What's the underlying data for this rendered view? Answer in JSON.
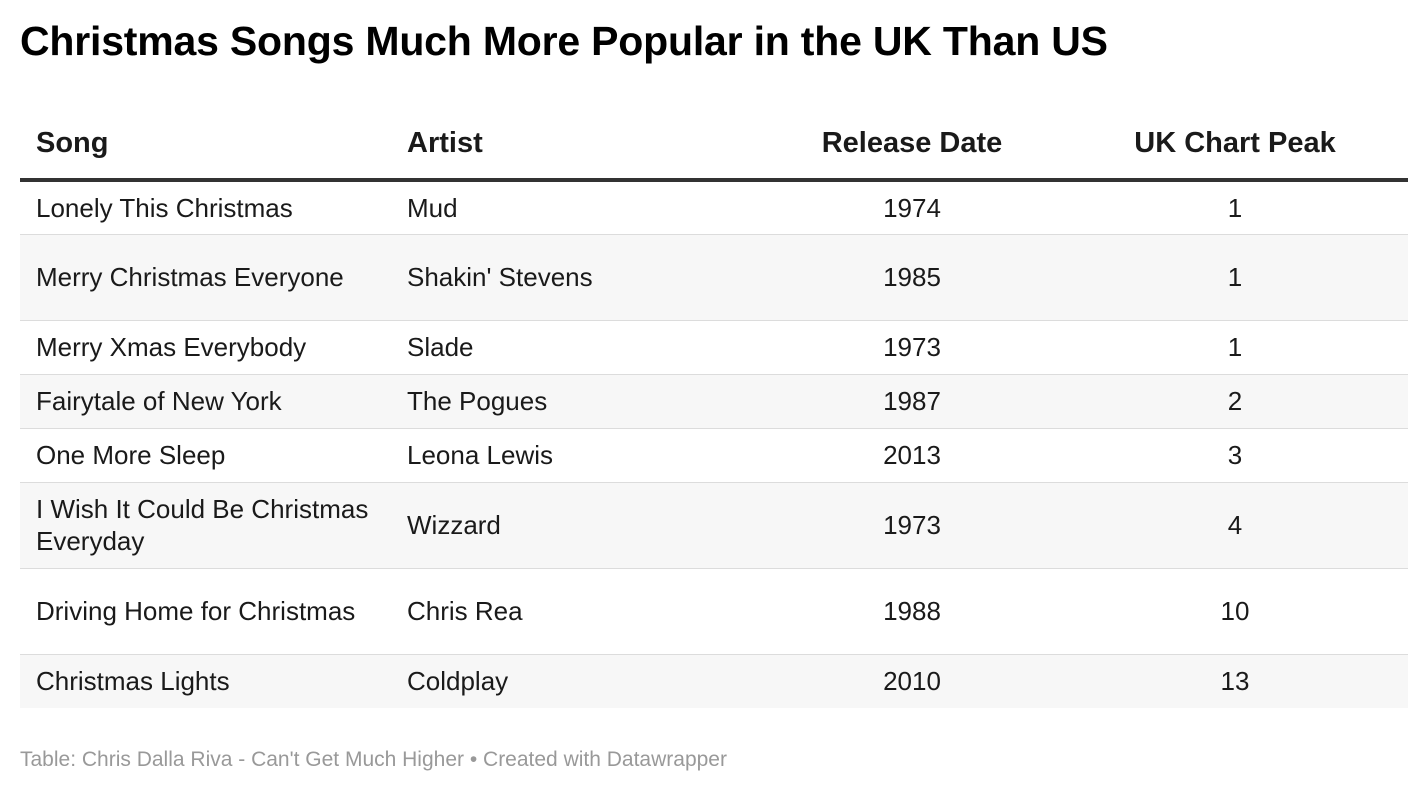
{
  "title": "Christmas Songs Much More Popular in the UK Than US",
  "footer": "Table: Chris Dalla Riva - Can't Get Much Higher • Created with Datawrapper",
  "chart_data": {
    "type": "table",
    "title": "Christmas Songs Much More Popular in the UK Than US",
    "columns": [
      "Song",
      "Artist",
      "Release Date",
      "UK Chart Peak"
    ],
    "rows": [
      {
        "song": "Lonely This Christmas",
        "artist": "Mud",
        "release_date": "1974",
        "uk_chart_peak": "1"
      },
      {
        "song": "Merry Christmas Everyone",
        "artist": "Shakin' Stevens",
        "release_date": "1985",
        "uk_chart_peak": "1"
      },
      {
        "song": "Merry Xmas Everybody",
        "artist": "Slade",
        "release_date": "1973",
        "uk_chart_peak": "1"
      },
      {
        "song": "Fairytale of New York",
        "artist": "The Pogues",
        "release_date": "1987",
        "uk_chart_peak": "2"
      },
      {
        "song": "One More Sleep",
        "artist": "Leona Lewis",
        "release_date": "2013",
        "uk_chart_peak": "3"
      },
      {
        "song": "I Wish It Could Be Christmas Everyday",
        "artist": "Wizzard",
        "release_date": "1973",
        "uk_chart_peak": "4"
      },
      {
        "song": "Driving Home for Christmas",
        "artist": "Chris Rea",
        "release_date": "1988",
        "uk_chart_peak": "10"
      },
      {
        "song": "Christmas Lights",
        "artist": "Coldplay",
        "release_date": "2010",
        "uk_chart_peak": "13"
      }
    ],
    "source": "Table: Chris Dalla Riva - Can't Get Much Higher • Created with Datawrapper"
  }
}
